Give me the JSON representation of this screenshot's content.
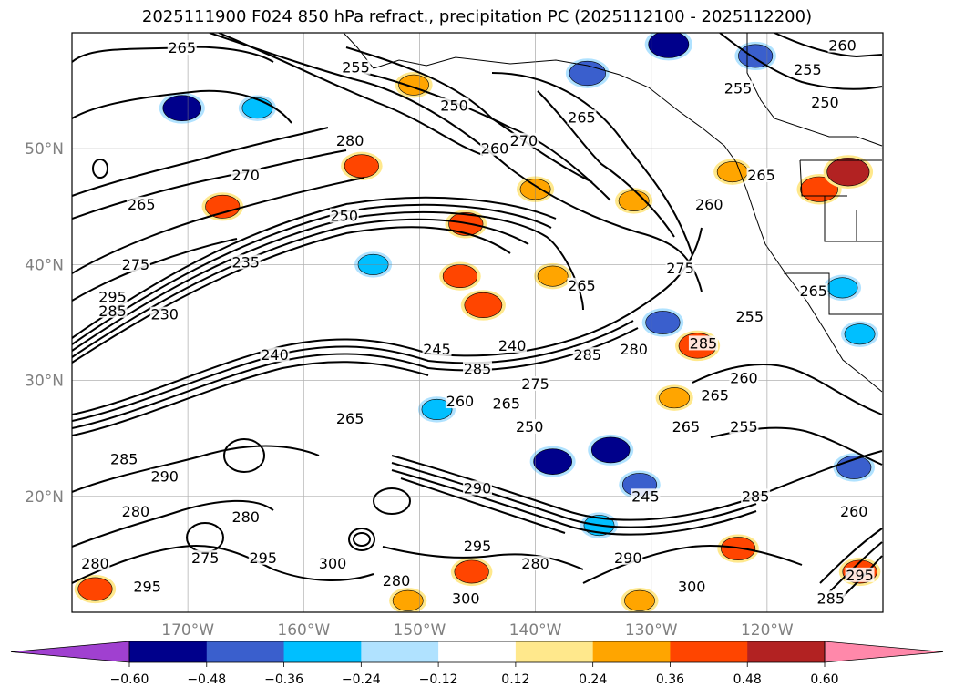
{
  "title": "2025111900 F024 850 hPa refract., precipitation PC (2025112100 - 2025112200)",
  "map": {
    "lon_range": [
      -180,
      -110
    ],
    "lat_range": [
      10,
      60
    ],
    "lat_ticks": [
      {
        "value": 50,
        "label": "50°N"
      },
      {
        "value": 40,
        "label": "40°N"
      },
      {
        "value": 30,
        "label": "30°N"
      },
      {
        "value": 20,
        "label": "20°N"
      }
    ],
    "lon_ticks": [
      {
        "value": -170,
        "label": "170°W"
      },
      {
        "value": -160,
        "label": "160°W"
      },
      {
        "value": -150,
        "label": "150°W"
      },
      {
        "value": -140,
        "label": "140°W"
      },
      {
        "value": -130,
        "label": "130°W"
      },
      {
        "value": -120,
        "label": "120°W"
      }
    ],
    "grid": true,
    "contour_labels": [
      {
        "text": "265",
        "lon": -170.5,
        "lat": 58.5
      },
      {
        "text": "255",
        "lon": -155.5,
        "lat": 56.8
      },
      {
        "text": "260",
        "lon": -113.5,
        "lat": 58.7
      },
      {
        "text": "255",
        "lon": -116.5,
        "lat": 56.6
      },
      {
        "text": "255",
        "lon": -122.5,
        "lat": 55.0
      },
      {
        "text": "250",
        "lon": -115.0,
        "lat": 53.8
      },
      {
        "text": "250",
        "lon": -147.0,
        "lat": 53.5
      },
      {
        "text": "265",
        "lon": -136.0,
        "lat": 52.5
      },
      {
        "text": "270",
        "lon": -141.0,
        "lat": 50.5
      },
      {
        "text": "260",
        "lon": -143.5,
        "lat": 49.8
      },
      {
        "text": "280",
        "lon": -156.0,
        "lat": 50.5
      },
      {
        "text": "270",
        "lon": -165.0,
        "lat": 47.5
      },
      {
        "text": "265",
        "lon": -174.0,
        "lat": 45.0
      },
      {
        "text": "250",
        "lon": -156.5,
        "lat": 44.0
      },
      {
        "text": "265",
        "lon": -120.5,
        "lat": 47.5
      },
      {
        "text": "260",
        "lon": -125.0,
        "lat": 45.0
      },
      {
        "text": "275",
        "lon": -174.5,
        "lat": 39.8
      },
      {
        "text": "235",
        "lon": -165.0,
        "lat": 40.0
      },
      {
        "text": "265",
        "lon": -136.0,
        "lat": 38.0
      },
      {
        "text": "275",
        "lon": -127.5,
        "lat": 39.5
      },
      {
        "text": "265",
        "lon": -116.0,
        "lat": 37.5
      },
      {
        "text": "295",
        "lon": -176.5,
        "lat": 37.0
      },
      {
        "text": "285",
        "lon": -176.5,
        "lat": 35.8
      },
      {
        "text": "230",
        "lon": -172.0,
        "lat": 35.5
      },
      {
        "text": "255",
        "lon": -121.5,
        "lat": 35.3
      },
      {
        "text": "285",
        "lon": -125.5,
        "lat": 33.0
      },
      {
        "text": "280",
        "lon": -131.5,
        "lat": 32.5
      },
      {
        "text": "245",
        "lon": -148.5,
        "lat": 32.5
      },
      {
        "text": "240",
        "lon": -142.0,
        "lat": 32.8
      },
      {
        "text": "285",
        "lon": -135.5,
        "lat": 32.0
      },
      {
        "text": "240",
        "lon": -162.5,
        "lat": 32.0
      },
      {
        "text": "285",
        "lon": -145.0,
        "lat": 30.8
      },
      {
        "text": "275",
        "lon": -140.0,
        "lat": 29.5
      },
      {
        "text": "260",
        "lon": -122.0,
        "lat": 30.0
      },
      {
        "text": "265",
        "lon": -124.5,
        "lat": 28.5
      },
      {
        "text": "260",
        "lon": -146.5,
        "lat": 28.0
      },
      {
        "text": "265",
        "lon": -142.5,
        "lat": 27.8
      },
      {
        "text": "265",
        "lon": -156.0,
        "lat": 26.5
      },
      {
        "text": "250",
        "lon": -140.5,
        "lat": 25.8
      },
      {
        "text": "265",
        "lon": -127.0,
        "lat": 25.8
      },
      {
        "text": "255",
        "lon": -122.0,
        "lat": 25.8
      },
      {
        "text": "285",
        "lon": -175.5,
        "lat": 23.0
      },
      {
        "text": "290",
        "lon": -172.0,
        "lat": 21.5
      },
      {
        "text": "290",
        "lon": -145.0,
        "lat": 20.5
      },
      {
        "text": "245",
        "lon": -130.5,
        "lat": 19.8
      },
      {
        "text": "285",
        "lon": -121.0,
        "lat": 19.8
      },
      {
        "text": "280",
        "lon": -174.5,
        "lat": 18.5
      },
      {
        "text": "280",
        "lon": -165.0,
        "lat": 18.0
      },
      {
        "text": "260",
        "lon": -112.5,
        "lat": 18.5
      },
      {
        "text": "275",
        "lon": -168.5,
        "lat": 14.5
      },
      {
        "text": "295",
        "lon": -163.5,
        "lat": 14.5
      },
      {
        "text": "300",
        "lon": -157.5,
        "lat": 14.0
      },
      {
        "text": "295",
        "lon": -145.0,
        "lat": 15.5
      },
      {
        "text": "280",
        "lon": -140.0,
        "lat": 14.0
      },
      {
        "text": "290",
        "lon": -132.0,
        "lat": 14.5
      },
      {
        "text": "280",
        "lon": -152.0,
        "lat": 12.5
      },
      {
        "text": "295",
        "lon": -173.5,
        "lat": 12.0
      },
      {
        "text": "300",
        "lon": -146.0,
        "lat": 11.0
      },
      {
        "text": "300",
        "lon": -126.5,
        "lat": 12.0
      },
      {
        "text": "295",
        "lon": -112.0,
        "lat": 13.0
      },
      {
        "text": "285",
        "lon": -114.5,
        "lat": 11.0
      },
      {
        "text": "280",
        "lon": -178.0,
        "lat": 14.0
      }
    ],
    "precip_blobs": [
      {
        "lon": -155.0,
        "lat": 48.5,
        "v": 0.4
      },
      {
        "lon": -167.0,
        "lat": 45.0,
        "v": 0.4
      },
      {
        "lon": -146.0,
        "lat": 43.5,
        "v": 0.4
      },
      {
        "lon": -140.0,
        "lat": 46.5,
        "v": 0.3
      },
      {
        "lon": -131.5,
        "lat": 45.5,
        "v": 0.3
      },
      {
        "lon": -146.5,
        "lat": 39.0,
        "v": 0.4
      },
      {
        "lon": -144.5,
        "lat": 36.5,
        "v": 0.48
      },
      {
        "lon": -126.0,
        "lat": 33.0,
        "v": 0.48
      },
      {
        "lon": -138.5,
        "lat": 39.0,
        "v": 0.3
      },
      {
        "lon": -115.5,
        "lat": 46.5,
        "v": 0.48
      },
      {
        "lon": -113.0,
        "lat": 48.0,
        "v": 0.6
      },
      {
        "lon": -123.0,
        "lat": 48.0,
        "v": 0.3
      },
      {
        "lon": -128.0,
        "lat": 28.5,
        "v": 0.3
      },
      {
        "lon": -150.5,
        "lat": 55.5,
        "v": 0.3
      },
      {
        "lon": -178.0,
        "lat": 12.0,
        "v": 0.4
      },
      {
        "lon": -122.5,
        "lat": 15.5,
        "v": 0.4
      },
      {
        "lon": -112.0,
        "lat": 13.5,
        "v": 0.4
      },
      {
        "lon": -145.5,
        "lat": 13.5,
        "v": 0.4
      },
      {
        "lon": -151.0,
        "lat": 11.0,
        "v": 0.3
      },
      {
        "lon": -131.0,
        "lat": 11.0,
        "v": 0.3
      },
      {
        "lon": -170.5,
        "lat": 53.5,
        "v": -0.5
      },
      {
        "lon": -164.0,
        "lat": 53.5,
        "v": -0.3
      },
      {
        "lon": -135.5,
        "lat": 56.5,
        "v": -0.45
      },
      {
        "lon": -128.5,
        "lat": 59.0,
        "v": -0.55
      },
      {
        "lon": -121.0,
        "lat": 58.0,
        "v": -0.4
      },
      {
        "lon": -138.5,
        "lat": 23.0,
        "v": -0.5
      },
      {
        "lon": -133.5,
        "lat": 24.0,
        "v": -0.5
      },
      {
        "lon": -131.0,
        "lat": 21.0,
        "v": -0.4
      },
      {
        "lon": -129.0,
        "lat": 35.0,
        "v": -0.4
      },
      {
        "lon": -134.5,
        "lat": 17.5,
        "v": -0.3
      },
      {
        "lon": -112.5,
        "lat": 22.5,
        "v": -0.4
      },
      {
        "lon": -113.5,
        "lat": 38.0,
        "v": -0.3
      },
      {
        "lon": -112.0,
        "lat": 34.0,
        "v": -0.3
      },
      {
        "lon": -154.0,
        "lat": 40.0,
        "v": -0.3
      },
      {
        "lon": -148.5,
        "lat": 27.5,
        "v": -0.3
      }
    ]
  },
  "colorbar": {
    "ticks": [
      "−0.60",
      "−0.48",
      "−0.36",
      "−0.24",
      "−0.12",
      "0.12",
      "0.24",
      "0.36",
      "0.48",
      "0.60"
    ],
    "colors": [
      "#a040d0",
      "#00008b",
      "#3a5fcd",
      "#00bfff",
      "#b0e2ff",
      "#ffffff",
      "#ffe88c",
      "#ffa500",
      "#ff4500",
      "#b22222",
      "#ff88aa",
      "#ff88aa"
    ]
  }
}
